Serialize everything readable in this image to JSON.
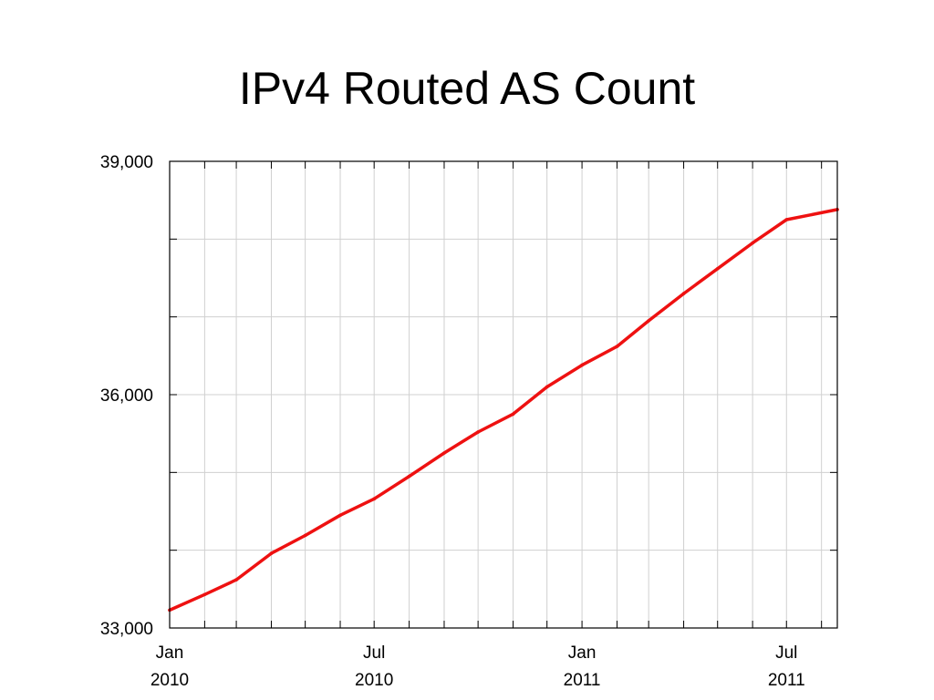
{
  "chart_data": {
    "type": "line",
    "title": "IPv4 Routed AS Count",
    "xlabel": "",
    "ylabel": "",
    "x_range": [
      "2010-01-01",
      "2011-08-15"
    ],
    "ylim": [
      33000,
      39000
    ],
    "y_ticks": [
      33000,
      34000,
      35000,
      36000,
      37000,
      38000,
      39000
    ],
    "y_tick_labels": [
      {
        "value": 39000,
        "label": "39,000"
      },
      {
        "value": 36000,
        "label": "36,000"
      },
      {
        "value": 33000,
        "label": "33,000"
      }
    ],
    "x_tick_labels": [
      {
        "date": "2010-01-01",
        "month": "Jan",
        "year": "2010"
      },
      {
        "date": "2010-07-01",
        "month": "Jul",
        "year": "2010"
      },
      {
        "date": "2011-01-01",
        "month": "Jan",
        "year": "2011"
      },
      {
        "date": "2011-07-01",
        "month": "Jul",
        "year": "2011"
      }
    ],
    "grid": true,
    "series": [
      {
        "color": "#ee1111",
        "points": [
          {
            "x": "2010-01-01",
            "y": 33230
          },
          {
            "x": "2010-02-01",
            "y": 33430
          },
          {
            "x": "2010-03-01",
            "y": 33620
          },
          {
            "x": "2010-04-01",
            "y": 33960
          },
          {
            "x": "2010-05-01",
            "y": 34190
          },
          {
            "x": "2010-06-01",
            "y": 34450
          },
          {
            "x": "2010-07-01",
            "y": 34660
          },
          {
            "x": "2010-08-01",
            "y": 34950
          },
          {
            "x": "2010-09-01",
            "y": 35250
          },
          {
            "x": "2010-10-01",
            "y": 35520
          },
          {
            "x": "2010-11-01",
            "y": 35750
          },
          {
            "x": "2010-12-01",
            "y": 36100
          },
          {
            "x": "2011-01-01",
            "y": 36380
          },
          {
            "x": "2011-02-01",
            "y": 36620
          },
          {
            "x": "2011-03-01",
            "y": 36950
          },
          {
            "x": "2011-04-01",
            "y": 37300
          },
          {
            "x": "2011-05-01",
            "y": 37620
          },
          {
            "x": "2011-06-01",
            "y": 37950
          },
          {
            "x": "2011-07-01",
            "y": 38250
          },
          {
            "x": "2011-08-15",
            "y": 38380
          }
        ]
      }
    ]
  }
}
